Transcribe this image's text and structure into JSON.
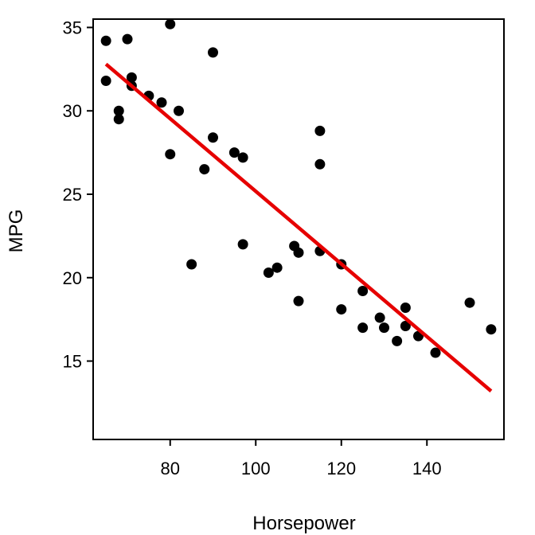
{
  "chart_data": {
    "type": "scatter",
    "title": "",
    "xlabel": "Horsepower",
    "ylabel": "MPG",
    "xlim": [
      62,
      158
    ],
    "ylim": [
      10.3,
      35.5
    ],
    "x_ticks": [
      80,
      100,
      120,
      140
    ],
    "y_ticks": [
      15,
      20,
      25,
      30,
      35
    ],
    "grid": false,
    "legend": "none",
    "points": [
      {
        "x": 65,
        "y": 34.2
      },
      {
        "x": 65,
        "y": 31.8
      },
      {
        "x": 68,
        "y": 30.0
      },
      {
        "x": 68,
        "y": 29.5
      },
      {
        "x": 70,
        "y": 34.3
      },
      {
        "x": 71,
        "y": 32.0
      },
      {
        "x": 71,
        "y": 31.5
      },
      {
        "x": 75,
        "y": 30.9
      },
      {
        "x": 78,
        "y": 30.5
      },
      {
        "x": 80,
        "y": 35.2
      },
      {
        "x": 80,
        "y": 27.4
      },
      {
        "x": 82,
        "y": 30.0
      },
      {
        "x": 85,
        "y": 20.8
      },
      {
        "x": 88,
        "y": 26.5
      },
      {
        "x": 90,
        "y": 33.5
      },
      {
        "x": 90,
        "y": 28.4
      },
      {
        "x": 95,
        "y": 27.5
      },
      {
        "x": 97,
        "y": 27.2
      },
      {
        "x": 97,
        "y": 22.0
      },
      {
        "x": 103,
        "y": 20.3
      },
      {
        "x": 105,
        "y": 20.6
      },
      {
        "x": 109,
        "y": 21.9
      },
      {
        "x": 110,
        "y": 21.5
      },
      {
        "x": 110,
        "y": 18.6
      },
      {
        "x": 115,
        "y": 28.8
      },
      {
        "x": 115,
        "y": 26.8
      },
      {
        "x": 115,
        "y": 21.6
      },
      {
        "x": 120,
        "y": 20.8
      },
      {
        "x": 120,
        "y": 18.1
      },
      {
        "x": 125,
        "y": 19.2
      },
      {
        "x": 125,
        "y": 17.0
      },
      {
        "x": 129,
        "y": 17.6
      },
      {
        "x": 130,
        "y": 17.0
      },
      {
        "x": 133,
        "y": 16.2
      },
      {
        "x": 135,
        "y": 18.2
      },
      {
        "x": 135,
        "y": 17.1
      },
      {
        "x": 138,
        "y": 16.5
      },
      {
        "x": 142,
        "y": 15.5
      },
      {
        "x": 150,
        "y": 18.5
      },
      {
        "x": 155,
        "y": 16.9
      }
    ],
    "trendline": {
      "type": "linear",
      "start": {
        "x": 65,
        "y": 32.8
      },
      "end": {
        "x": 155,
        "y": 13.2
      }
    },
    "colors": {
      "points": "#000000",
      "trendline": "#e60000",
      "axis": "#000000",
      "background": "#ffffff"
    }
  }
}
